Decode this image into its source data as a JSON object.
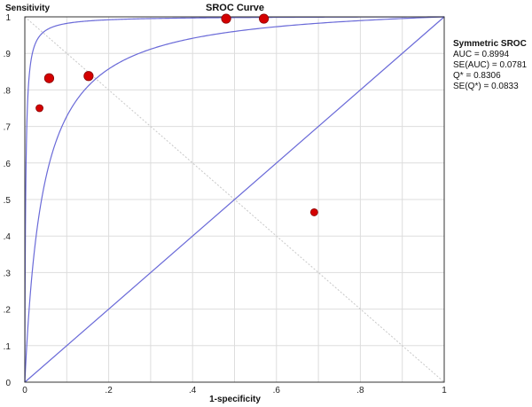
{
  "chart_data": {
    "type": "scatter",
    "title": "SROC Curve",
    "xlabel": "1-specificity",
    "ylabel": "Sensitivity",
    "xlim": [
      0,
      1
    ],
    "ylim": [
      0,
      1
    ],
    "x_ticks": [
      "0",
      ".2",
      ".4",
      ".6",
      ".8",
      "1"
    ],
    "y_ticks": [
      "0",
      ".1",
      ".2",
      ".3",
      ".4",
      ".5",
      ".6",
      ".7",
      ".8",
      ".9",
      "1"
    ],
    "grid": true,
    "points": [
      {
        "x": 0.035,
        "y": 0.75,
        "size": "small"
      },
      {
        "x": 0.058,
        "y": 0.832,
        "size": "large"
      },
      {
        "x": 0.152,
        "y": 0.838,
        "size": "large"
      },
      {
        "x": 0.48,
        "y": 0.995,
        "size": "large"
      },
      {
        "x": 0.57,
        "y": 0.995,
        "size": "large"
      },
      {
        "x": 0.69,
        "y": 0.465,
        "size": "small"
      }
    ],
    "curves": [
      {
        "type": "sroc",
        "auc": 0.8994
      },
      {
        "type": "sroc-bound",
        "theta": 6.2
      },
      {
        "type": "chance-diagonal"
      },
      {
        "type": "q-star-antidiagonal"
      }
    ],
    "colors": {
      "points": "#d40000",
      "point_edge": "#8a0000",
      "curves": "#6a6ad8",
      "grid": "#dddddd",
      "antidiagonal": "#c8c8c8"
    }
  },
  "legend": {
    "title": "Symmetric SROC",
    "lines": [
      "AUC = 0.8994",
      "SE(AUC) = 0.0781",
      "Q* = 0.8306",
      "SE(Q*) = 0.0833"
    ]
  }
}
